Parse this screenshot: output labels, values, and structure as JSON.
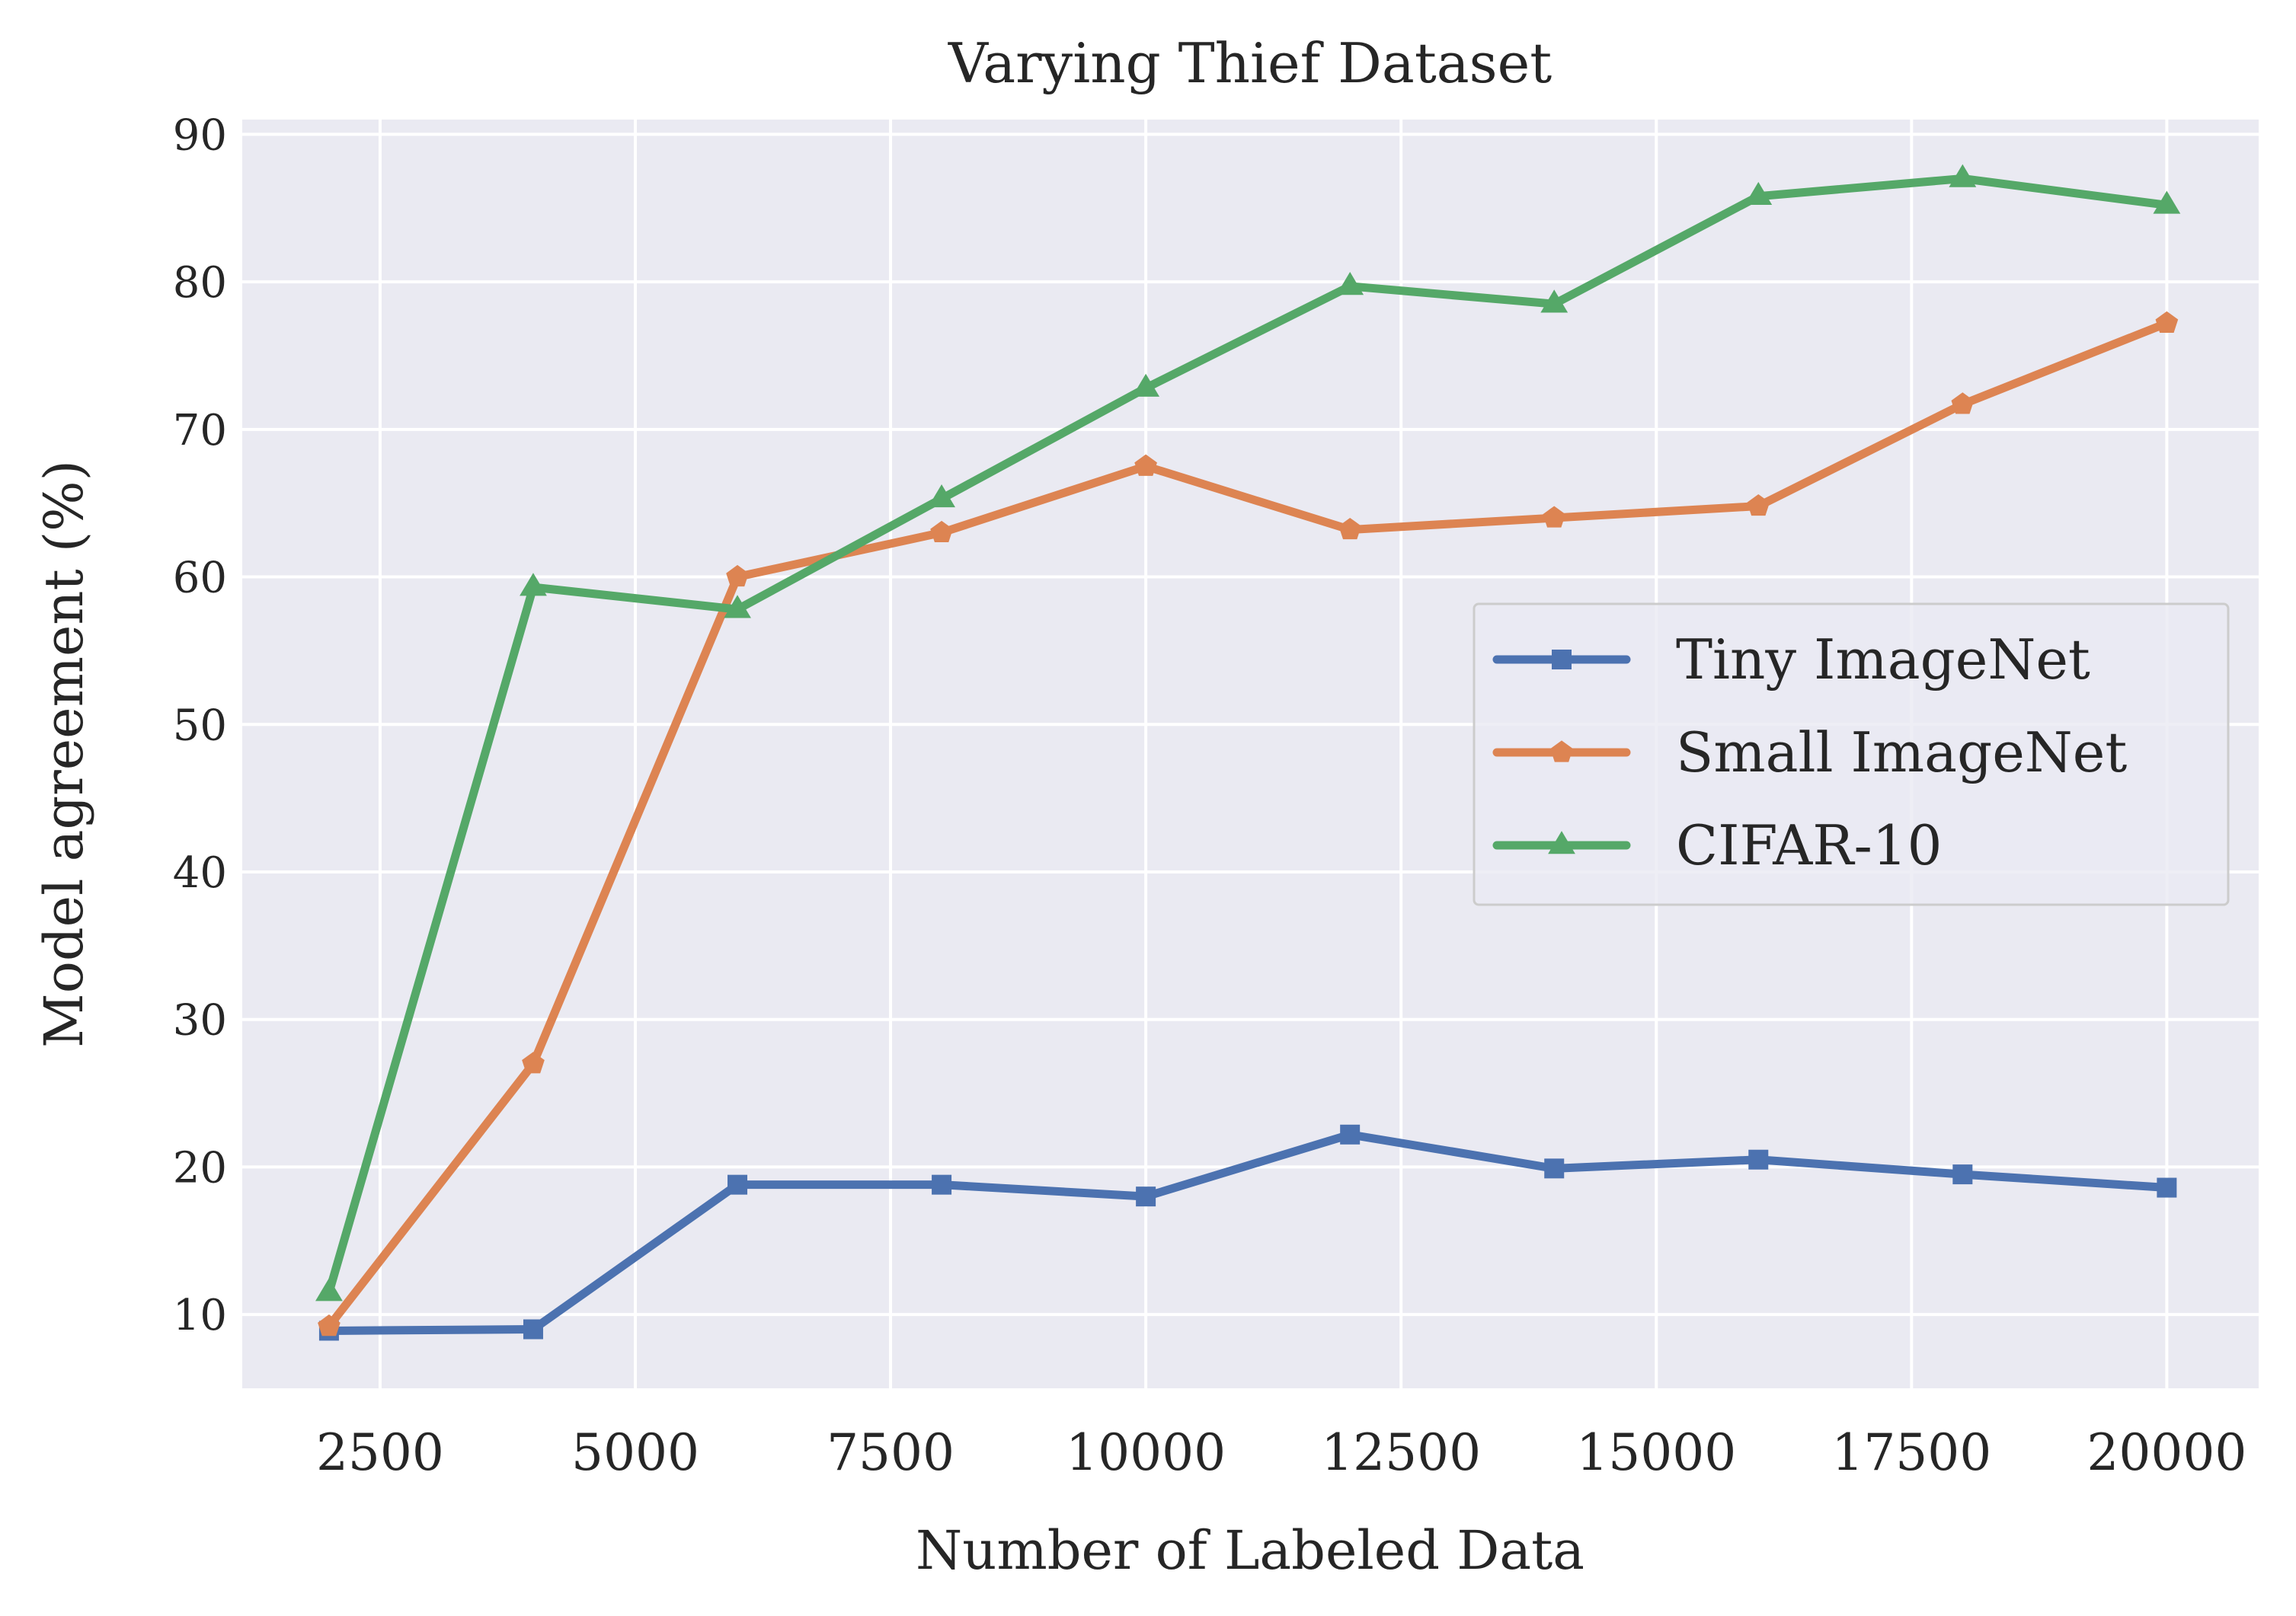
{
  "chart_data": {
    "type": "line",
    "title": "Varying Thief Dataset",
    "xlabel": "Number of Labeled Data",
    "ylabel": "Model agreement (%)",
    "xlim": [
      1150,
      20900
    ],
    "ylim": [
      5,
      91
    ],
    "xticks": [
      2500,
      5000,
      7500,
      10000,
      12500,
      15000,
      17500,
      20000
    ],
    "yticks": [
      10,
      20,
      30,
      40,
      50,
      60,
      70,
      80,
      90
    ],
    "grid": true,
    "legend_position": "center-right",
    "x": [
      2000,
      4000,
      6000,
      8000,
      10000,
      12000,
      14000,
      16000,
      18000,
      20000
    ],
    "series": [
      {
        "name": "Tiny ImageNet",
        "color": "#4c72b0",
        "marker": "square",
        "values": [
          8.9,
          9.0,
          18.8,
          18.8,
          18.0,
          22.2,
          19.9,
          20.5,
          19.5,
          18.6
        ]
      },
      {
        "name": "Small ImageNet",
        "color": "#dd8452",
        "marker": "pentagon",
        "values": [
          9.2,
          27.0,
          60.0,
          63.0,
          67.5,
          63.2,
          64.0,
          64.8,
          71.7,
          77.2
        ]
      },
      {
        "name": "CIFAR-10",
        "color": "#55a868",
        "marker": "triangle",
        "values": [
          11.5,
          59.3,
          57.8,
          65.3,
          72.8,
          79.7,
          78.5,
          85.8,
          87.0,
          85.2
        ]
      }
    ]
  }
}
